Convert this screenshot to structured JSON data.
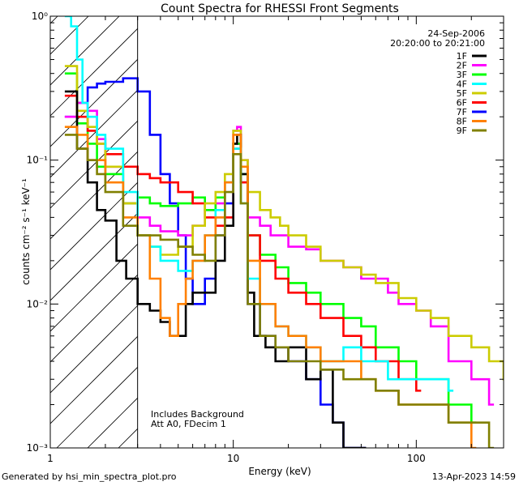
{
  "chart_data": {
    "type": "line",
    "title": "Count Spectra for RHESSI Front Segments",
    "xlabel": "Energy (keV)",
    "ylabel": "counts cm⁻² s⁻¹ keV⁻¹",
    "xscale": "log",
    "yscale": "log",
    "xlim": [
      1,
      300
    ],
    "ylim": [
      0.001,
      1
    ],
    "x_tick_labels": [
      "1",
      "10",
      "100"
    ],
    "y_tick_labels": [
      "10⁻³",
      "10⁻²",
      "10⁻¹",
      "10⁰"
    ],
    "date": "24-Sep-2006",
    "time_range": "20:20:00 to 20:21:00",
    "annotations": [
      "Includes Background",
      "Att A0, FDecim 1"
    ],
    "hatched_region_keV": [
      1,
      3
    ],
    "series": [
      {
        "name": "1F",
        "color": "#000000",
        "x": [
          1.2,
          1.4,
          1.6,
          1.8,
          2.0,
          2.3,
          2.6,
          3.0,
          3.5,
          4.0,
          4.5,
          5.0,
          5.5,
          6.0,
          7.0,
          8.0,
          9.0,
          10.0,
          10.5,
          11.0,
          12.0,
          13.0,
          15.0,
          17.0,
          20.0,
          25.0,
          30.0,
          35.0,
          40.0,
          50.0
        ],
        "values": [
          0.3,
          0.12,
          0.07,
          0.045,
          0.038,
          0.02,
          0.015,
          0.01,
          0.009,
          0.0075,
          0.006,
          0.006,
          0.01,
          0.012,
          0.012,
          0.02,
          0.035,
          0.13,
          0.15,
          0.08,
          0.012,
          0.006,
          0.005,
          0.004,
          0.005,
          0.003,
          0.0035,
          0.0015,
          0.001,
          0.001
        ]
      },
      {
        "name": "2F",
        "color": "#ff00ff",
        "x": [
          1.2,
          1.4,
          1.6,
          1.8,
          2.0,
          2.5,
          3.0,
          3.5,
          4.0,
          5.0,
          6.0,
          7.0,
          8.0,
          9.0,
          10.0,
          10.5,
          11.0,
          12.0,
          14.0,
          16.0,
          20.0,
          25.0,
          30.0,
          40.0,
          50.0,
          60.0,
          70.0,
          80.0,
          100.0,
          120.0,
          150.0,
          200.0,
          250.0
        ],
        "values": [
          0.2,
          0.25,
          0.22,
          0.14,
          0.09,
          0.05,
          0.04,
          0.035,
          0.032,
          0.03,
          0.035,
          0.045,
          0.05,
          0.07,
          0.16,
          0.17,
          0.1,
          0.04,
          0.035,
          0.03,
          0.025,
          0.024,
          0.02,
          0.018,
          0.015,
          0.015,
          0.012,
          0.01,
          0.009,
          0.007,
          0.004,
          0.003,
          0.002
        ]
      },
      {
        "name": "3F",
        "color": "#00ff00",
        "x": [
          1.2,
          1.4,
          1.6,
          1.8,
          2.0,
          2.5,
          3.0,
          3.5,
          4.0,
          5.0,
          6.0,
          7.0,
          8.0,
          9.0,
          10.0,
          11.0,
          12.0,
          14.0,
          17.0,
          20.0,
          25.0,
          30.0,
          40.0,
          50.0,
          60.0,
          80.0,
          100.0,
          150.0,
          200.0
        ],
        "values": [
          0.4,
          0.18,
          0.13,
          0.09,
          0.08,
          0.05,
          0.055,
          0.05,
          0.048,
          0.05,
          0.055,
          0.045,
          0.055,
          0.07,
          0.13,
          0.08,
          0.03,
          0.022,
          0.018,
          0.014,
          0.012,
          0.01,
          0.008,
          0.007,
          0.005,
          0.004,
          0.003,
          0.002,
          0.0015
        ]
      },
      {
        "name": "4F",
        "color": "#00ffff",
        "x": [
          1.2,
          1.3,
          1.4,
          1.5,
          1.6,
          1.8,
          2.0,
          2.5,
          3.0,
          3.5,
          4.0,
          5.0,
          6.0,
          7.0,
          8.0,
          9.0,
          10.0,
          11.0,
          12.0,
          14.0,
          17.0,
          20.0,
          25.0,
          30.0,
          40.0,
          50.0,
          70.0,
          100.0,
          150.0
        ],
        "values": [
          1.0,
          0.85,
          0.5,
          0.25,
          0.2,
          0.15,
          0.12,
          0.06,
          0.03,
          0.025,
          0.02,
          0.017,
          0.02,
          0.03,
          0.045,
          0.07,
          0.12,
          0.05,
          0.015,
          0.01,
          0.007,
          0.006,
          0.005,
          0.004,
          0.005,
          0.004,
          0.003,
          0.003,
          0.0025
        ]
      },
      {
        "name": "5F",
        "color": "#cccc00",
        "x": [
          1.2,
          1.4,
          1.6,
          1.8,
          2.0,
          2.5,
          3.0,
          3.5,
          4.0,
          5.0,
          6.0,
          7.0,
          8.0,
          9.0,
          10.0,
          11.0,
          12.0,
          14.0,
          16.0,
          18.0,
          20.0,
          25.0,
          30.0,
          40.0,
          50.0,
          60.0,
          80.0,
          100.0,
          120.0,
          150.0,
          200.0,
          250.0,
          300.0
        ],
        "values": [
          0.45,
          0.22,
          0.17,
          0.13,
          0.09,
          0.05,
          0.03,
          0.025,
          0.022,
          0.025,
          0.035,
          0.05,
          0.06,
          0.08,
          0.16,
          0.1,
          0.06,
          0.045,
          0.04,
          0.035,
          0.03,
          0.025,
          0.02,
          0.018,
          0.016,
          0.014,
          0.011,
          0.009,
          0.008,
          0.006,
          0.005,
          0.004,
          0.003
        ]
      },
      {
        "name": "6F",
        "color": "#ff0000",
        "x": [
          1.2,
          1.4,
          1.6,
          1.8,
          2.0,
          2.5,
          3.0,
          3.5,
          4.0,
          5.0,
          6.0,
          7.0,
          8.0,
          9.0,
          10.0,
          11.0,
          12.0,
          14.0,
          17.0,
          20.0,
          25.0,
          30.0,
          40.0,
          50.0,
          60.0,
          80.0,
          100.0
        ],
        "values": [
          0.28,
          0.2,
          0.16,
          0.13,
          0.11,
          0.09,
          0.08,
          0.075,
          0.07,
          0.06,
          0.05,
          0.04,
          0.035,
          0.04,
          0.12,
          0.07,
          0.03,
          0.02,
          0.015,
          0.012,
          0.01,
          0.008,
          0.006,
          0.005,
          0.004,
          0.003,
          0.0025
        ]
      },
      {
        "name": "7F",
        "color": "#0000ff",
        "x": [
          1.2,
          1.4,
          1.6,
          1.8,
          2.0,
          2.5,
          3.0,
          3.5,
          4.0,
          4.5,
          5.0,
          5.5,
          6.0,
          7.0,
          8.0,
          9.0,
          10.0,
          11.0,
          12.0,
          14.0,
          17.0,
          20.0,
          25.0,
          30.0,
          35.0,
          40.0,
          50.0
        ],
        "values": [
          0.2,
          0.25,
          0.32,
          0.34,
          0.35,
          0.37,
          0.3,
          0.15,
          0.08,
          0.05,
          0.03,
          0.015,
          0.01,
          0.015,
          0.03,
          0.05,
          0.13,
          0.07,
          0.01,
          0.006,
          0.005,
          0.004,
          0.003,
          0.002,
          0.0015,
          0.001,
          0.001
        ]
      },
      {
        "name": "8F",
        "color": "#ff8000",
        "x": [
          1.2,
          1.4,
          1.6,
          1.8,
          2.0,
          2.5,
          3.0,
          3.5,
          4.0,
          4.5,
          5.0,
          5.5,
          6.0,
          7.0,
          8.0,
          9.0,
          10.0,
          11.0,
          12.0,
          14.0,
          17.0,
          20.0,
          25.0,
          30.0,
          40.0,
          50.0,
          60.0,
          80.0,
          100.0,
          150.0,
          200.0
        ],
        "values": [
          0.17,
          0.15,
          0.1,
          0.1,
          0.07,
          0.04,
          0.03,
          0.015,
          0.008,
          0.006,
          0.01,
          0.015,
          0.02,
          0.03,
          0.04,
          0.07,
          0.15,
          0.09,
          0.02,
          0.01,
          0.007,
          0.006,
          0.005,
          0.004,
          0.004,
          0.003,
          0.0025,
          0.002,
          0.002,
          0.0015,
          0.001
        ]
      },
      {
        "name": "9F",
        "color": "#808000",
        "x": [
          1.2,
          1.4,
          1.6,
          1.8,
          2.0,
          2.5,
          3.0,
          3.5,
          4.0,
          5.0,
          6.0,
          7.0,
          8.0,
          9.0,
          10.0,
          11.0,
          12.0,
          14.0,
          17.0,
          20.0,
          25.0,
          30.0,
          40.0,
          50.0,
          60.0,
          80.0,
          100.0,
          150.0,
          200.0,
          250.0
        ],
        "values": [
          0.15,
          0.12,
          0.1,
          0.08,
          0.06,
          0.035,
          0.03,
          0.03,
          0.028,
          0.025,
          0.022,
          0.02,
          0.03,
          0.06,
          0.11,
          0.05,
          0.01,
          0.006,
          0.005,
          0.004,
          0.004,
          0.0035,
          0.003,
          0.003,
          0.0025,
          0.002,
          0.002,
          0.0015,
          0.0015,
          0.001
        ]
      }
    ]
  },
  "footer": {
    "left": "Generated by hsi_min_spectra_plot.pro",
    "right": "13-Apr-2023 14:59"
  }
}
